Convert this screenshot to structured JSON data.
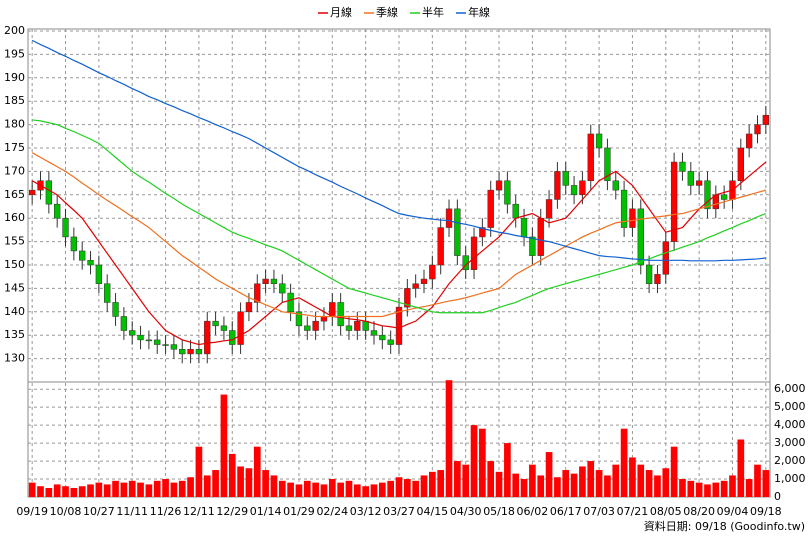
{
  "chart_data": [
    {
      "type": "candlestick",
      "categories": [
        "09/19",
        null,
        null,
        null,
        "10/08",
        null,
        null,
        null,
        "10/27",
        null,
        null,
        null,
        "11/11",
        null,
        null,
        null,
        "11/26",
        null,
        null,
        null,
        "12/11",
        null,
        null,
        null,
        "12/29",
        null,
        null,
        null,
        "01/14",
        null,
        null,
        null,
        "01/29",
        null,
        null,
        null,
        "02/24",
        null,
        null,
        null,
        "03/12",
        null,
        null,
        null,
        "03/27",
        null,
        null,
        null,
        "04/15",
        null,
        null,
        null,
        "04/30",
        null,
        null,
        null,
        "05/18",
        null,
        null,
        null,
        "06/02",
        null,
        null,
        null,
        "06/17",
        null,
        null,
        null,
        "07/03",
        null,
        null,
        null,
        "07/21",
        null,
        null,
        null,
        "08/05",
        null,
        null,
        null,
        "08/20",
        null,
        null,
        null,
        "09/04",
        null,
        null,
        null,
        "09/18"
      ],
      "open": [
        165,
        166,
        168,
        163,
        160,
        156,
        153,
        151,
        150,
        146,
        142,
        139,
        136,
        135,
        134,
        134,
        133,
        133,
        132,
        131,
        132,
        131,
        138,
        137,
        136,
        133,
        140,
        142,
        146,
        147,
        146,
        144,
        140,
        137,
        136,
        138,
        139,
        142,
        137,
        136,
        138,
        136,
        135,
        134,
        133,
        141,
        145,
        146,
        147,
        150,
        158,
        162,
        152,
        149,
        156,
        158,
        166,
        168,
        163,
        160,
        156,
        152,
        160,
        164,
        170,
        167,
        165,
        168,
        178,
        175,
        168,
        166,
        158,
        162,
        150,
        146,
        148,
        155,
        172,
        170,
        167,
        168,
        162,
        165,
        164,
        168,
        175,
        178,
        180
      ],
      "high": [
        168,
        170,
        170,
        165,
        162,
        158,
        155,
        153,
        152,
        148,
        144,
        141,
        138,
        137,
        136,
        136,
        135,
        135,
        134,
        134,
        134,
        140,
        140,
        139,
        138,
        142,
        144,
        148,
        149,
        149,
        148,
        146,
        142,
        139,
        140,
        141,
        144,
        144,
        139,
        140,
        140,
        138,
        137,
        136,
        143,
        147,
        148,
        149,
        152,
        160,
        164,
        164,
        154,
        158,
        160,
        168,
        170,
        170,
        165,
        162,
        158,
        162,
        166,
        172,
        172,
        169,
        170,
        180,
        180,
        177,
        170,
        168,
        164,
        164,
        152,
        150,
        157,
        174,
        174,
        172,
        170,
        170,
        167,
        167,
        170,
        177,
        180,
        182,
        184
      ],
      "low": [
        163,
        164,
        161,
        158,
        154,
        151,
        149,
        148,
        144,
        140,
        137,
        134,
        133,
        132,
        132,
        131,
        131,
        130,
        129,
        129,
        129,
        129,
        135,
        134,
        131,
        131,
        138,
        140,
        144,
        144,
        142,
        138,
        135,
        134,
        134,
        136,
        137,
        135,
        134,
        134,
        134,
        133,
        132,
        131,
        131,
        139,
        143,
        144,
        145,
        148,
        156,
        150,
        147,
        147,
        154,
        156,
        164,
        161,
        158,
        154,
        150,
        150,
        158,
        162,
        165,
        163,
        163,
        166,
        173,
        166,
        164,
        156,
        156,
        148,
        144,
        144,
        146,
        153,
        168,
        165,
        165,
        160,
        160,
        162,
        162,
        166,
        173,
        176,
        178
      ],
      "close": [
        166,
        168,
        163,
        160,
        156,
        153,
        151,
        150,
        146,
        142,
        139,
        136,
        135,
        134,
        134,
        133,
        133,
        132,
        131,
        132,
        131,
        138,
        137,
        136,
        133,
        140,
        142,
        146,
        147,
        146,
        144,
        140,
        137,
        136,
        138,
        139,
        142,
        137,
        136,
        138,
        136,
        135,
        134,
        133,
        141,
        145,
        146,
        147,
        150,
        158,
        162,
        152,
        149,
        156,
        158,
        166,
        168,
        163,
        160,
        156,
        152,
        160,
        164,
        170,
        167,
        165,
        168,
        178,
        175,
        168,
        166,
        158,
        162,
        150,
        146,
        148,
        155,
        172,
        170,
        167,
        168,
        162,
        165,
        164,
        168,
        175,
        178,
        180,
        182
      ],
      "up_color": "#ff0000",
      "down_color": "#00c000",
      "series": [
        {
          "name": "月線",
          "color": "#e00000",
          "values": [
            168,
            167,
            166,
            165,
            163.3,
            161.7,
            160,
            157.5,
            155,
            152.5,
            150,
            147.5,
            145,
            142.5,
            140,
            138,
            136,
            135,
            134,
            133.5,
            133,
            133.3,
            133.5,
            133.8,
            134,
            135,
            136,
            137.5,
            139,
            140.5,
            142,
            142.5,
            143,
            142,
            141,
            140,
            139,
            138.8,
            138.5,
            138.3,
            138,
            137.5,
            137,
            136.8,
            136.5,
            137.3,
            138,
            139.5,
            141,
            143.5,
            146,
            148,
            150,
            151.5,
            153,
            154.5,
            156,
            158,
            160,
            160.5,
            161,
            160,
            159,
            159.5,
            160,
            162,
            164,
            166,
            168,
            169,
            170,
            168.5,
            167,
            164.5,
            162,
            159.5,
            157,
            157.5,
            158,
            160,
            162,
            163.5,
            165,
            165.5,
            166,
            167.5,
            169,
            170.5,
            172
          ]
        },
        {
          "name": "季線",
          "color": "#f07020",
          "values": [
            174,
            173,
            172,
            171,
            170,
            168.8,
            167.5,
            166.3,
            165,
            163.8,
            162.7,
            161.5,
            160.3,
            159.2,
            158,
            156.5,
            155,
            153.5,
            152,
            150.8,
            149.5,
            148.3,
            147,
            146,
            145,
            144,
            143,
            142.3,
            141.5,
            140.8,
            140,
            139.8,
            139.5,
            139.3,
            139,
            139,
            139,
            139,
            139,
            139,
            139,
            139,
            139,
            139.5,
            140,
            140.4,
            140.8,
            141.1,
            141.5,
            141.9,
            142.3,
            142.6,
            143,
            143.5,
            144,
            144.5,
            145,
            146.5,
            148,
            149,
            150,
            151,
            152,
            153,
            154,
            155,
            156,
            156.8,
            157.5,
            158.3,
            159,
            159.3,
            159.5,
            159.8,
            160,
            160.3,
            160.5,
            160.8,
            161,
            161.5,
            162,
            162.5,
            163,
            163.5,
            164,
            164.5,
            165,
            165.5,
            166
          ]
        },
        {
          "name": "半年",
          "color": "#20d020",
          "values": [
            181,
            180.8,
            180.4,
            180,
            179.2,
            178.5,
            177.7,
            176.9,
            176,
            174.5,
            173,
            171.5,
            170,
            168.8,
            167.7,
            166.5,
            165.3,
            164.2,
            163,
            162,
            161,
            160,
            159,
            158,
            157,
            156.3,
            155.7,
            155,
            154.3,
            153.7,
            153,
            152,
            151,
            150,
            149,
            148,
            147,
            146,
            145,
            144.5,
            144,
            143.5,
            143,
            142.5,
            142,
            141.5,
            141,
            140.5,
            140,
            139.8,
            139.8,
            139.8,
            139.8,
            139.8,
            139.8,
            140.3,
            140.9,
            141.5,
            142,
            142.8,
            143.5,
            144.3,
            145,
            145.5,
            146,
            146.5,
            147,
            147.5,
            148,
            148.5,
            149,
            149.5,
            150,
            150.7,
            151.3,
            152,
            152.6,
            153.2,
            153.8,
            154.4,
            155,
            155.8,
            156.5,
            157.3,
            158,
            158.8,
            159.5,
            160.3,
            161
          ]
        },
        {
          "name": "年線",
          "color": "#1060d0",
          "values": [
            198,
            197.1,
            196.3,
            195.4,
            194.6,
            193.7,
            192.9,
            192,
            191.1,
            190.3,
            189.4,
            188.6,
            187.7,
            186.9,
            186,
            185.3,
            184.5,
            183.8,
            183,
            182.3,
            181.5,
            180.8,
            180,
            179.3,
            178.5,
            177.8,
            177,
            176,
            175,
            174,
            173,
            172,
            171,
            170.2,
            169.3,
            168.5,
            167.7,
            166.8,
            166,
            165.2,
            164.3,
            163.5,
            162.7,
            161.8,
            161,
            160.6,
            160.3,
            160,
            159.8,
            159.6,
            159.5,
            159,
            158.7,
            158.3,
            157.8,
            157.4,
            157,
            156.7,
            156.3,
            156,
            155.7,
            155.3,
            155,
            154.5,
            154,
            153.5,
            153,
            152.5,
            152,
            151.8,
            151.7,
            151.5,
            151.3,
            151.2,
            151,
            151,
            151,
            151,
            151,
            150.9,
            150.9,
            150.9,
            150.9,
            151,
            151,
            151.1,
            151.2,
            151.3,
            151.5
          ]
        }
      ],
      "ylim": [
        125,
        200
      ],
      "yticks": [
        130,
        135,
        140,
        145,
        150,
        155,
        160,
        165,
        170,
        175,
        180,
        185,
        190,
        195,
        200
      ],
      "grid": true
    },
    {
      "type": "bar",
      "color": "#ff0000",
      "values": [
        800,
        600,
        500,
        700,
        600,
        500,
        600,
        700,
        800,
        700,
        900,
        800,
        900,
        800,
        700,
        900,
        1000,
        800,
        900,
        1100,
        2800,
        1200,
        1500,
        5700,
        2400,
        1700,
        1600,
        2800,
        1500,
        1200,
        900,
        800,
        700,
        900,
        800,
        700,
        1000,
        800,
        900,
        700,
        600,
        700,
        800,
        900,
        1100,
        1000,
        900,
        1200,
        1400,
        1500,
        6500,
        2000,
        1800,
        4000,
        3800,
        2000,
        1400,
        3000,
        1300,
        1000,
        1800,
        1200,
        2500,
        1100,
        1500,
        1300,
        1700,
        2000,
        1500,
        1200,
        1800,
        3800,
        2200,
        1800,
        1500,
        1200,
        1600,
        2800,
        1000,
        900,
        800,
        700,
        800,
        900,
        1200,
        3200,
        1000,
        1800,
        1500
      ],
      "ylim": [
        0,
        6400
      ],
      "yticks": [
        0,
        {
          "value": 1000,
          "label": "1,000"
        },
        {
          "value": 2000,
          "label": "2,000"
        },
        {
          "value": 3000,
          "label": "3,000"
        },
        {
          "value": 4000,
          "label": "4,000"
        },
        {
          "value": 5000,
          "label": "5,000"
        },
        {
          "value": 6000,
          "label": "6,000"
        }
      ],
      "grid": true
    }
  ],
  "footer": "資料日期: 09/18 (Goodinfo.tw)"
}
